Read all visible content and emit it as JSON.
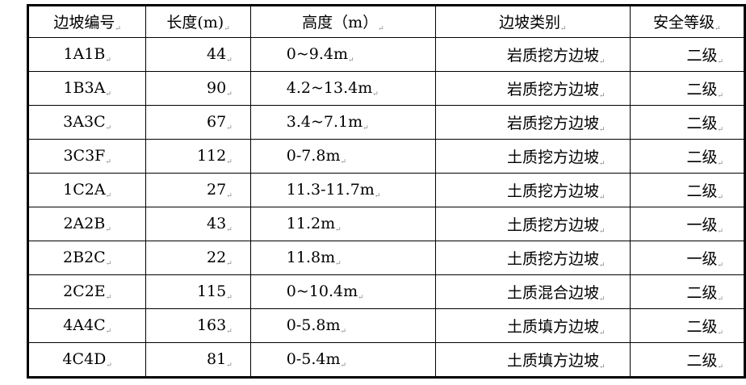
{
  "table": {
    "headers": [
      "边坡编号",
      "长度(m)",
      "高度（m）",
      "边坡类别",
      "安全等级"
    ],
    "rows": [
      [
        "1A1B",
        "44",
        "0~9.4m",
        "岩质挖方边坡",
        "二级"
      ],
      [
        "1B3A",
        "90",
        "4.2~13.4m",
        "岩质挖方边坡",
        "二级"
      ],
      [
        "3A3C",
        "67",
        "3.4~7.1m",
        "岩质挖方边坡",
        "二级"
      ],
      [
        "3C3F",
        "112",
        "0-7.8m",
        "土质挖方边坡",
        "二级"
      ],
      [
        "1C2A",
        "27",
        "11.3-11.7m",
        "土质挖方边坡",
        "二级"
      ],
      [
        "2A2B",
        "43",
        "11.2m",
        "土质挖方边坡",
        "一级"
      ],
      [
        "2B2C",
        "22",
        "11.8m",
        "土质挖方边坡",
        "一级"
      ],
      [
        "2C2E",
        "115",
        "0~10.4m",
        "土质混合边坡",
        "二级"
      ],
      [
        "4A4C",
        "163",
        "0-5.8m",
        "土质填方边坡",
        "二级"
      ],
      [
        "4C4D",
        "81",
        "0-5.4m",
        "土质填方边坡",
        "二级"
      ]
    ]
  }
}
